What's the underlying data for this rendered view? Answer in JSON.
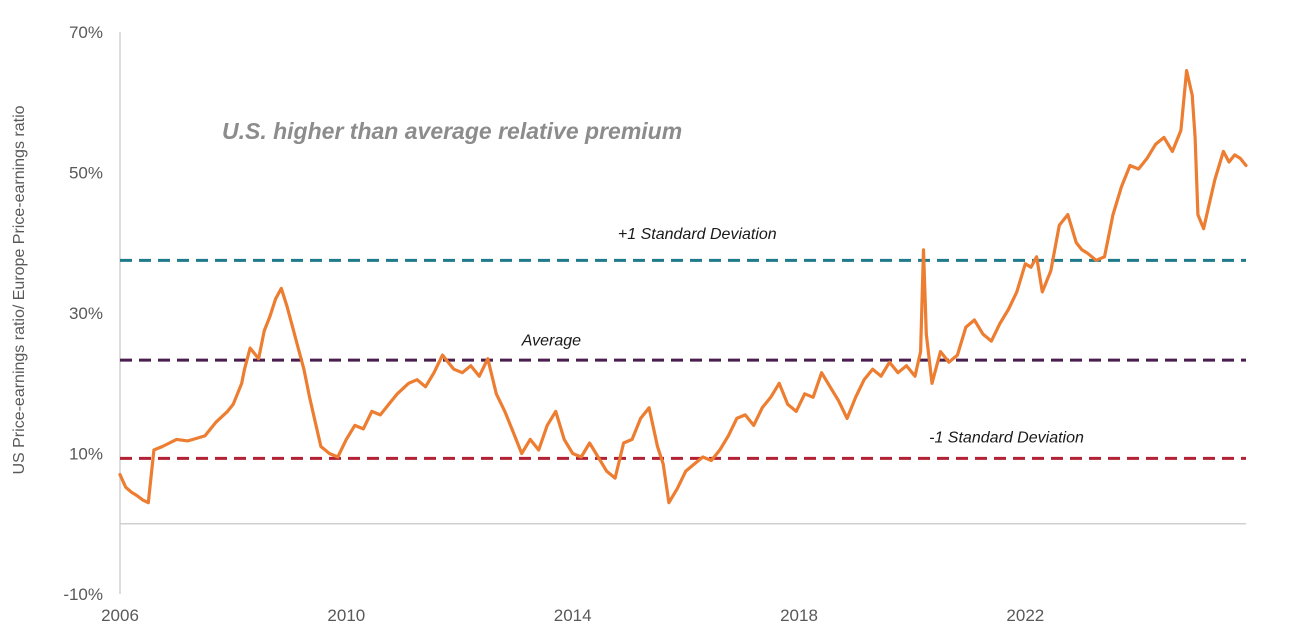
{
  "chart_data": {
    "type": "line",
    "title": "",
    "annotation": "U.S. higher than average relative premium",
    "xlabel": "",
    "ylabel": "US Price-earnings ratio/ Europe Price-earnings ratio",
    "xlim": [
      2006,
      2025.9
    ],
    "ylim": [
      -10,
      70
    ],
    "x_ticks": [
      2006,
      2010,
      2014,
      2018,
      2022
    ],
    "x_tick_labels": [
      "2006",
      "2010",
      "2014",
      "2018",
      "2022"
    ],
    "y_ticks": [
      -10,
      10,
      30,
      50,
      70
    ],
    "y_tick_labels": [
      "-10%",
      "10%",
      "30%",
      "50%",
      "70%"
    ],
    "baseline": 0,
    "reference_lines": [
      {
        "name": "+1 Standard Deviation",
        "value": 37.5,
        "color": "#1f7a8c",
        "label_x": 2014.8,
        "label_y": 40.5
      },
      {
        "name": "Average",
        "value": 23.3,
        "color": "#4a1f4f",
        "label_x": 2013.1,
        "label_y": 25.4
      },
      {
        "name": "-1 Standard Deviation",
        "value": 9.3,
        "color": "#b22234",
        "label_x": 2020.3,
        "label_y": 11.6
      }
    ],
    "series": [
      {
        "name": "US/Europe P/E relative premium",
        "color": "#ec7d31",
        "x": [
          2006.0,
          2006.1,
          2006.2,
          2006.3,
          2006.4,
          2006.5,
          2006.6,
          2006.75,
          2007.0,
          2007.2,
          2007.5,
          2007.7,
          2007.9,
          2008.0,
          2008.15,
          2008.2,
          2008.3,
          2008.45,
          2008.55,
          2008.65,
          2008.75,
          2008.85,
          2008.95,
          2009.05,
          2009.15,
          2009.25,
          2009.35,
          2009.45,
          2009.55,
          2009.7,
          2009.85,
          2010.0,
          2010.15,
          2010.3,
          2010.45,
          2010.6,
          2010.75,
          2010.9,
          2011.1,
          2011.25,
          2011.4,
          2011.55,
          2011.7,
          2011.8,
          2011.9,
          2012.05,
          2012.2,
          2012.35,
          2012.5,
          2012.65,
          2012.8,
          2012.95,
          2013.1,
          2013.25,
          2013.4,
          2013.55,
          2013.7,
          2013.85,
          2014.0,
          2014.15,
          2014.3,
          2014.45,
          2014.6,
          2014.75,
          2014.9,
          2015.05,
          2015.2,
          2015.35,
          2015.5,
          2015.6,
          2015.7,
          2015.85,
          2016.0,
          2016.15,
          2016.3,
          2016.45,
          2016.6,
          2016.75,
          2016.9,
          2017.05,
          2017.2,
          2017.35,
          2017.5,
          2017.65,
          2017.8,
          2017.95,
          2018.1,
          2018.25,
          2018.4,
          2018.55,
          2018.7,
          2018.85,
          2019.0,
          2019.15,
          2019.3,
          2019.45,
          2019.6,
          2019.75,
          2019.9,
          2020.05,
          2020.15,
          2020.2,
          2020.25,
          2020.35,
          2020.5,
          2020.65,
          2020.8,
          2020.95,
          2021.1,
          2021.25,
          2021.4,
          2021.55,
          2021.7,
          2021.85,
          2022.0,
          2022.1,
          2022.2,
          2022.3,
          2022.45,
          2022.6,
          2022.75,
          2022.9,
          2023.0,
          2023.1,
          2023.25,
          2023.4,
          2023.55,
          2023.7,
          2023.85,
          2024.0,
          2024.15,
          2024.3,
          2024.45,
          2024.6,
          2024.75,
          2024.85,
          2024.95,
          2025.0,
          2025.05,
          2025.15,
          2025.25,
          2025.35,
          2025.5,
          2025.6,
          2025.7,
          2025.8,
          2025.9
        ],
        "values": [
          7.0,
          5.2,
          4.5,
          4.0,
          3.4,
          3.0,
          10.5,
          11.0,
          12.0,
          11.8,
          12.5,
          14.5,
          16.0,
          17.0,
          20.0,
          22.0,
          25.0,
          23.5,
          27.5,
          29.5,
          32.0,
          33.5,
          31.0,
          28.0,
          25.0,
          22.0,
          18.0,
          14.5,
          11.0,
          10.0,
          9.5,
          12.0,
          14.0,
          13.5,
          16.0,
          15.5,
          17.0,
          18.5,
          20.0,
          20.5,
          19.5,
          21.5,
          24.0,
          23.0,
          22.0,
          21.5,
          22.5,
          21.0,
          23.5,
          18.5,
          16.0,
          13.0,
          10.0,
          12.0,
          10.5,
          14.0,
          16.0,
          12.0,
          10.0,
          9.5,
          11.5,
          9.5,
          7.5,
          6.5,
          11.5,
          12.0,
          15.0,
          16.5,
          11.0,
          8.5,
          3.0,
          5.0,
          7.5,
          8.5,
          9.5,
          9.0,
          10.5,
          12.5,
          15.0,
          15.5,
          14.0,
          16.5,
          18.0,
          20.0,
          17.0,
          16.0,
          18.5,
          18.0,
          21.5,
          19.5,
          17.5,
          15.0,
          18.0,
          20.5,
          22.0,
          21.0,
          23.0,
          21.5,
          22.5,
          21.0,
          24.5,
          39.0,
          27.0,
          20.0,
          24.5,
          23.0,
          24.0,
          28.0,
          29.0,
          27.0,
          26.0,
          28.5,
          30.5,
          33.0,
          37.0,
          36.5,
          38.0,
          33.0,
          36.0,
          42.5,
          44.0,
          40.0,
          39.0,
          38.5,
          37.5,
          38.0,
          44.0,
          48.0,
          51.0,
          50.5,
          52.0,
          54.0,
          55.0,
          53.0,
          56.0,
          64.5,
          61.0,
          55.0,
          44.0,
          42.0,
          45.5,
          49.0,
          53.0,
          51.5,
          52.5,
          52.0,
          51.0
        ]
      }
    ]
  }
}
